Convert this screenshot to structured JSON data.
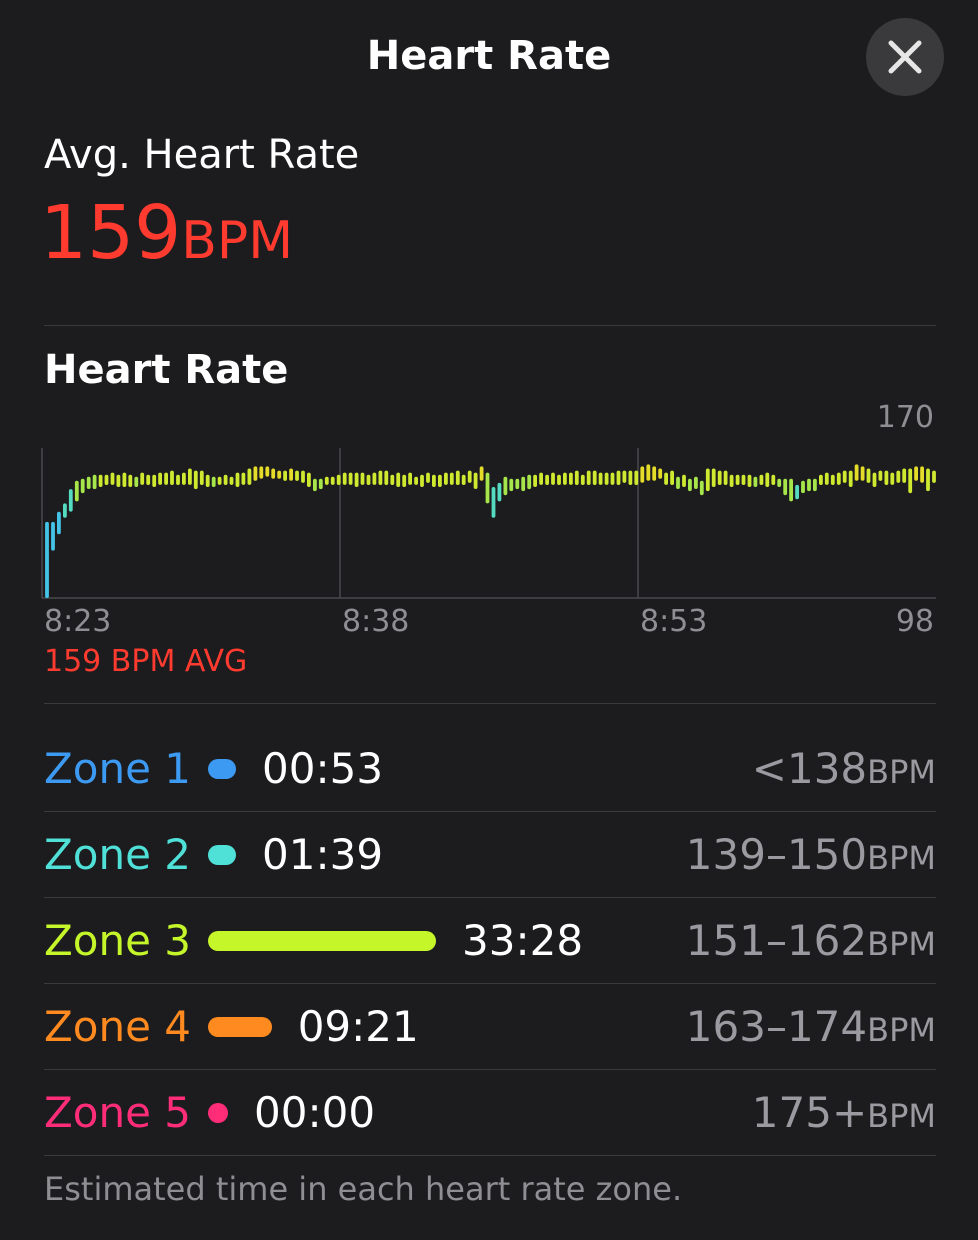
{
  "header": {
    "title": "Heart Rate"
  },
  "summary": {
    "label": "Avg. Heart Rate",
    "value": "159",
    "unit": "BPM"
  },
  "chart_section": {
    "title": "Heart Rate"
  },
  "chart_data": {
    "type": "bar",
    "title": "Heart Rate",
    "xlabel": "",
    "ylabel": "",
    "x_ticks": [
      "8:23",
      "8:38",
      "8:53"
    ],
    "y_max_label": "170",
    "y_min_label": "98",
    "ylim": [
      98,
      170
    ],
    "average_label": "159 BPM AVG",
    "average": 159,
    "grid": "vertical",
    "series": [
      {
        "values": [
          [
            98,
            135
          ],
          [
            121,
            135
          ],
          [
            129,
            140
          ],
          [
            137,
            144
          ],
          [
            140,
            151
          ],
          [
            145,
            155
          ],
          [
            149,
            156
          ],
          [
            151,
            157
          ],
          [
            151,
            158
          ],
          [
            152,
            158
          ],
          [
            153,
            158
          ],
          [
            153,
            159
          ],
          [
            152,
            158
          ],
          [
            152,
            159
          ],
          [
            152,
            158
          ],
          [
            152,
            157
          ],
          [
            153,
            159
          ],
          [
            153,
            158
          ],
          [
            152,
            158
          ],
          [
            153,
            159
          ],
          [
            153,
            159
          ],
          [
            153,
            160
          ],
          [
            153,
            158
          ],
          [
            153,
            159
          ],
          [
            153,
            161
          ],
          [
            151,
            160
          ],
          [
            153,
            160
          ],
          [
            152,
            158
          ],
          [
            152,
            157
          ],
          [
            153,
            157
          ],
          [
            153,
            158
          ],
          [
            153,
            157
          ],
          [
            152,
            159
          ],
          [
            153,
            159
          ],
          [
            153,
            161
          ],
          [
            155,
            162
          ],
          [
            156,
            162
          ],
          [
            157,
            162
          ],
          [
            156,
            161
          ],
          [
            156,
            160
          ],
          [
            155,
            160
          ],
          [
            155,
            161
          ],
          [
            155,
            160
          ],
          [
            154,
            160
          ],
          [
            152,
            159
          ],
          [
            150,
            156
          ],
          [
            151,
            156
          ],
          [
            153,
            157
          ],
          [
            153,
            157
          ],
          [
            153,
            158
          ],
          [
            153,
            159
          ],
          [
            153,
            159
          ],
          [
            152,
            159
          ],
          [
            153,
            159
          ],
          [
            153,
            158
          ],
          [
            153,
            159
          ],
          [
            153,
            160
          ],
          [
            153,
            160
          ],
          [
            153,
            158
          ],
          [
            152,
            159
          ],
          [
            152,
            158
          ],
          [
            153,
            159
          ],
          [
            153,
            157
          ],
          [
            152,
            158
          ],
          [
            154,
            159
          ],
          [
            152,
            158
          ],
          [
            152,
            158
          ],
          [
            153,
            159
          ],
          [
            153,
            159
          ],
          [
            153,
            160
          ],
          [
            153,
            158
          ],
          [
            154,
            160
          ],
          [
            151,
            159
          ],
          [
            155,
            162
          ],
          [
            144,
            159
          ],
          [
            137,
            152
          ],
          [
            145,
            154
          ],
          [
            148,
            157
          ],
          [
            150,
            156
          ],
          [
            151,
            156
          ],
          [
            150,
            157
          ],
          [
            151,
            158
          ],
          [
            152,
            158
          ],
          [
            153,
            159
          ],
          [
            153,
            158
          ],
          [
            153,
            159
          ],
          [
            153,
            158
          ],
          [
            153,
            159
          ],
          [
            153,
            159
          ],
          [
            153,
            160
          ],
          [
            153,
            158
          ],
          [
            153,
            160
          ],
          [
            153,
            160
          ],
          [
            153,
            159
          ],
          [
            153,
            159
          ],
          [
            153,
            159
          ],
          [
            153,
            160
          ],
          [
            154,
            160
          ],
          [
            153,
            160
          ],
          [
            153,
            160
          ],
          [
            154,
            162
          ],
          [
            155,
            163
          ],
          [
            155,
            162
          ],
          [
            156,
            161
          ],
          [
            153,
            159
          ],
          [
            153,
            160
          ],
          [
            151,
            157
          ],
          [
            152,
            158
          ],
          [
            150,
            156
          ],
          [
            151,
            157
          ],
          [
            148,
            155
          ],
          [
            150,
            161
          ],
          [
            152,
            161
          ],
          [
            153,
            160
          ],
          [
            153,
            160
          ],
          [
            152,
            158
          ],
          [
            153,
            158
          ],
          [
            153,
            158
          ],
          [
            152,
            158
          ],
          [
            152,
            157
          ],
          [
            153,
            158
          ],
          [
            152,
            159
          ],
          [
            153,
            158
          ],
          [
            152,
            156
          ],
          [
            148,
            156
          ],
          [
            145,
            156
          ],
          [
            146,
            153
          ],
          [
            149,
            155
          ],
          [
            150,
            156
          ],
          [
            150,
            156
          ],
          [
            153,
            158
          ],
          [
            153,
            159
          ],
          [
            153,
            158
          ],
          [
            153,
            159
          ],
          [
            154,
            160
          ],
          [
            152,
            160
          ],
          [
            155,
            163
          ],
          [
            155,
            162
          ],
          [
            154,
            161
          ],
          [
            152,
            159
          ],
          [
            155,
            160
          ],
          [
            153,
            160
          ],
          [
            153,
            159
          ],
          [
            154,
            160
          ],
          [
            154,
            161
          ],
          [
            149,
            161
          ],
          [
            155,
            162
          ],
          [
            154,
            162
          ],
          [
            150,
            161
          ],
          [
            154,
            160
          ]
        ]
      }
    ]
  },
  "zones": [
    {
      "name": "Zone 1",
      "time": "00:53",
      "range": "<138",
      "unit": "BPM",
      "color": "#3d9af2",
      "minutes": 0.88
    },
    {
      "name": "Zone 2",
      "time": "01:39",
      "range": "139–150",
      "unit": "BPM",
      "color": "#4fe0d8",
      "minutes": 1.65
    },
    {
      "name": "Zone 3",
      "time": "33:28",
      "range": "151–162",
      "unit": "BPM",
      "color": "#c5f62a",
      "minutes": 33.47
    },
    {
      "name": "Zone 4",
      "time": "09:21",
      "range": "163–174",
      "unit": "BPM",
      "color": "#ff8a1f",
      "minutes": 9.35
    },
    {
      "name": "Zone 5",
      "time": "00:00",
      "range": "175+",
      "unit": "BPM",
      "color": "#ff2d78",
      "minutes": 0
    }
  ],
  "footnote": "Estimated time in each heart rate zone.",
  "colors": {
    "background": "#1c1c1e",
    "accent": "#ff3b30",
    "secondary_text": "#9a9aa0",
    "separator": "#3a3a3c"
  },
  "icons": {
    "close": "close-icon"
  }
}
